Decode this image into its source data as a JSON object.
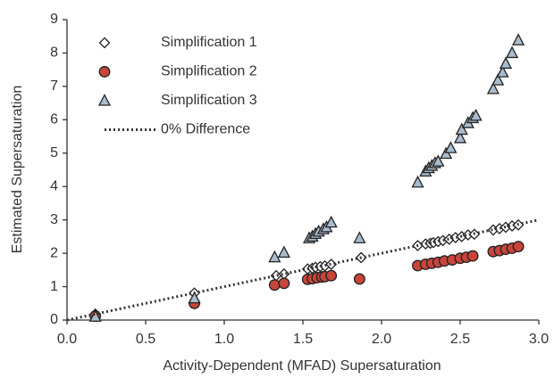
{
  "chart_data": {
    "type": "scatter",
    "x_label": "Activity-Dependent (MFAD) Supersaturation",
    "y_label": "Estimated Supersaturation",
    "xlim": [
      0,
      3
    ],
    "ylim": [
      0,
      9
    ],
    "xticks": [
      {
        "value": 0,
        "label": "0.0"
      },
      0.5,
      {
        "value": 1,
        "label": "1.0"
      },
      1.5,
      {
        "value": 2,
        "label": "2.0"
      },
      2.5,
      {
        "value": 3,
        "label": "3.0"
      }
    ],
    "yticks": [
      0,
      1,
      2,
      3,
      4,
      5,
      6,
      7,
      8,
      9
    ],
    "legend": "upper-left",
    "series": [
      {
        "name": "Simplification 1",
        "marker": "diamond",
        "color": "#ffffff",
        "x": [
          0.18,
          0.81,
          1.33,
          1.38,
          1.53,
          1.56,
          1.58,
          1.61,
          1.64,
          1.68,
          1.87,
          2.23,
          2.28,
          2.31,
          2.33,
          2.36,
          2.39,
          2.43,
          2.47,
          2.51,
          2.55,
          2.59,
          2.71,
          2.75,
          2.79,
          2.83,
          2.87
        ],
        "values": [
          0.18,
          0.81,
          1.33,
          1.38,
          1.53,
          1.55,
          1.58,
          1.6,
          1.62,
          1.67,
          1.87,
          2.23,
          2.28,
          2.3,
          2.32,
          2.35,
          2.38,
          2.42,
          2.47,
          2.5,
          2.55,
          2.57,
          2.7,
          2.74,
          2.78,
          2.82,
          2.85
        ]
      },
      {
        "name": "Simplification 2",
        "marker": "circle",
        "color": "#c8453a",
        "x": [
          0.18,
          0.81,
          1.32,
          1.38,
          1.53,
          1.56,
          1.59,
          1.62,
          1.64,
          1.68,
          1.86,
          2.23,
          2.28,
          2.32,
          2.36,
          2.4,
          2.45,
          2.5,
          2.54,
          2.58,
          2.71,
          2.75,
          2.79,
          2.83,
          2.87
        ],
        "values": [
          0.12,
          0.5,
          1.05,
          1.1,
          1.22,
          1.24,
          1.27,
          1.29,
          1.3,
          1.33,
          1.23,
          1.63,
          1.67,
          1.7,
          1.73,
          1.77,
          1.8,
          1.85,
          1.88,
          1.92,
          2.05,
          2.08,
          2.12,
          2.15,
          2.2
        ]
      },
      {
        "name": "Simplification 3",
        "marker": "triangle",
        "color": "#a9bccd",
        "x": [
          0.18,
          0.81,
          1.32,
          1.38,
          1.54,
          1.56,
          1.58,
          1.6,
          1.63,
          1.65,
          1.68,
          1.86,
          2.23,
          2.28,
          2.3,
          2.32,
          2.34,
          2.36,
          2.41,
          2.44,
          2.5,
          2.51,
          2.55,
          2.58,
          2.6,
          2.71,
          2.74,
          2.77,
          2.79,
          2.83,
          2.87
        ],
        "values": [
          0.1,
          0.65,
          1.88,
          2.02,
          2.45,
          2.5,
          2.58,
          2.65,
          2.72,
          2.78,
          2.92,
          2.45,
          4.12,
          4.45,
          4.55,
          4.62,
          4.7,
          4.75,
          4.98,
          5.15,
          5.45,
          5.7,
          5.9,
          6.05,
          6.12,
          6.92,
          7.18,
          7.42,
          7.68,
          8.0,
          8.38
        ]
      },
      {
        "name": "0% Difference",
        "marker": "dotted-line",
        "color": "#333333",
        "x": [
          0,
          3
        ],
        "values": [
          0,
          3
        ]
      }
    ]
  }
}
